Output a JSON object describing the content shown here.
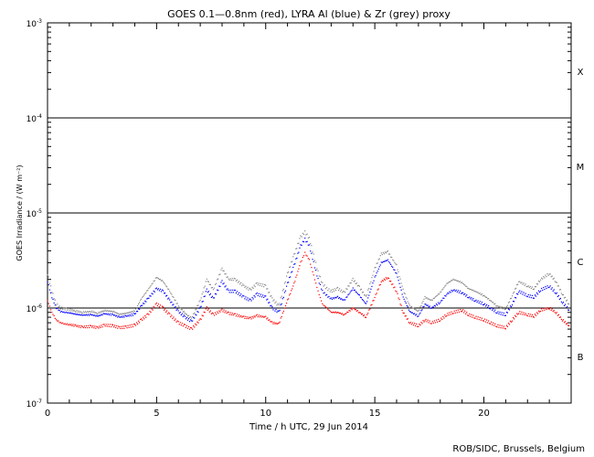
{
  "chart_data": {
    "type": "scatter",
    "title": "GOES 0.1—0.8nm (red), LYRA Al (blue) & Zr (grey) proxy",
    "xlabel": "Time / h UTC, 29 Jun 2014",
    "ylabel": "GOES Irradiance / (W m⁻²)",
    "xlim": [
      0,
      24
    ],
    "ylim": [
      1e-07,
      0.001
    ],
    "yscale": "log",
    "x_ticks": [
      {
        "value": 0,
        "label": "0"
      },
      {
        "value": 5,
        "label": "5"
      },
      {
        "value": 10,
        "label": "10"
      },
      {
        "value": 15,
        "label": "15"
      },
      {
        "value": 20,
        "label": "20"
      }
    ],
    "y_ticks": [
      {
        "value": 1e-07,
        "base": "10",
        "exp": "-7"
      },
      {
        "value": 1e-06,
        "base": "10",
        "exp": "-6"
      },
      {
        "value": 1e-05,
        "base": "10",
        "exp": "-5"
      },
      {
        "value": 0.0001,
        "base": "10",
        "exp": "-4"
      },
      {
        "value": 0.001,
        "base": "10",
        "exp": "-3"
      }
    ],
    "class_levels": [
      1e-06,
      1e-05,
      0.0001
    ],
    "class_labels": [
      {
        "label": "B",
        "value": 3.1e-07
      },
      {
        "label": "C",
        "value": 3.1e-06
      },
      {
        "label": "M",
        "value": 3.1e-05
      },
      {
        "label": "X",
        "value": 0.00031
      }
    ],
    "grid": false,
    "series": [
      {
        "color": "#ff0000",
        "x": [
          0.0,
          0.2,
          0.4,
          0.6,
          0.8,
          1.0,
          1.3,
          1.6,
          2.0,
          2.3,
          2.6,
          3.0,
          3.3,
          3.6,
          4.0,
          4.3,
          4.6,
          5.0,
          5.3,
          5.6,
          6.0,
          6.3,
          6.6,
          7.0,
          7.3,
          7.6,
          8.0,
          8.3,
          8.6,
          9.0,
          9.3,
          9.6,
          10.0,
          10.3,
          10.6,
          11.0,
          11.3,
          11.6,
          11.8,
          12.0,
          12.2,
          12.4,
          12.6,
          12.8,
          13.0,
          13.3,
          13.6,
          14.0,
          14.3,
          14.6,
          15.0,
          15.3,
          15.6,
          16.0,
          16.3,
          16.6,
          17.0,
          17.3,
          17.6,
          18.0,
          18.3,
          18.6,
          19.0,
          19.3,
          19.6,
          20.0,
          20.3,
          20.6,
          21.0,
          21.3,
          21.6,
          22.0,
          22.3,
          22.6,
          23.0,
          23.3,
          23.6,
          23.9
        ],
        "y": [
          1.2e-06,
          9e-07,
          7.5e-07,
          7e-07,
          6.8e-07,
          6.7e-07,
          6.5e-07,
          6.3e-07,
          6.4e-07,
          6.2e-07,
          6.6e-07,
          6.5e-07,
          6.2e-07,
          6.3e-07,
          6.6e-07,
          7.5e-07,
          8.5e-07,
          1.1e-06,
          1e-06,
          8.5e-07,
          7e-07,
          6.5e-07,
          6e-07,
          7.5e-07,
          1e-06,
          8.5e-07,
          9.5e-07,
          8.8e-07,
          8.5e-07,
          8e-07,
          7.8e-07,
          8.3e-07,
          8e-07,
          7e-07,
          6.8e-07,
          1.2e-06,
          1.8e-06,
          3e-06,
          3.8e-06,
          3.2e-06,
          2.2e-06,
          1.5e-06,
          1.1e-06,
          1e-06,
          9e-07,
          9e-07,
          8.5e-07,
          1e-06,
          9e-07,
          8e-07,
          1.3e-06,
          1.9e-06,
          2.1e-06,
          1.5e-06,
          9e-07,
          7e-07,
          6.5e-07,
          7.5e-07,
          7e-07,
          7.5e-07,
          8.5e-07,
          9e-07,
          9.5e-07,
          8.5e-07,
          8e-07,
          7.5e-07,
          7e-07,
          6.5e-07,
          6.2e-07,
          7.5e-07,
          9e-07,
          8.5e-07,
          8.2e-07,
          9.5e-07,
          1e-06,
          9e-07,
          7.5e-07,
          6.5e-07
        ]
      },
      {
        "color": "#0000ff",
        "x": [
          0.0,
          0.2,
          0.4,
          0.6,
          0.8,
          1.0,
          1.3,
          1.6,
          2.0,
          2.3,
          2.6,
          3.0,
          3.3,
          3.6,
          4.0,
          4.3,
          4.6,
          5.0,
          5.3,
          5.6,
          6.0,
          6.3,
          6.6,
          7.0,
          7.3,
          7.6,
          8.0,
          8.3,
          8.6,
          9.0,
          9.3,
          9.6,
          10.0,
          10.3,
          10.6,
          11.0,
          11.3,
          11.6,
          11.8,
          12.0,
          12.2,
          12.4,
          12.6,
          12.8,
          13.0,
          13.3,
          13.6,
          14.0,
          14.3,
          14.6,
          15.0,
          15.3,
          15.6,
          16.0,
          16.3,
          16.6,
          17.0,
          17.3,
          17.6,
          18.0,
          18.3,
          18.6,
          19.0,
          19.3,
          19.6,
          20.0,
          20.3,
          20.6,
          21.0,
          21.3,
          21.6,
          22.0,
          22.3,
          22.6,
          23.0,
          23.3,
          23.6,
          23.9
        ],
        "y": [
          1.9e-06,
          1.3e-06,
          1e-06,
          9.2e-07,
          9e-07,
          8.9e-07,
          8.6e-07,
          8.4e-07,
          8.5e-07,
          8.2e-07,
          8.7e-07,
          8.5e-07,
          8e-07,
          8.2e-07,
          8.6e-07,
          1.05e-06,
          1.25e-06,
          1.6e-06,
          1.5e-06,
          1.2e-06,
          9.2e-07,
          8e-07,
          7.2e-07,
          1e-06,
          1.55e-06,
          1.25e-06,
          1.9e-06,
          1.5e-06,
          1.5e-06,
          1.3e-06,
          1.2e-06,
          1.4e-06,
          1.3e-06,
          1e-06,
          9e-07,
          1.8e-06,
          2.8e-06,
          4.5e-06,
          5.3e-06,
          4.5e-06,
          3e-06,
          2e-06,
          1.5e-06,
          1.35e-06,
          1.25e-06,
          1.3e-06,
          1.2e-06,
          1.6e-06,
          1.35e-06,
          1.1e-06,
          2.1e-06,
          3e-06,
          3.2e-06,
          2.3e-06,
          1.3e-06,
          9.2e-07,
          8.2e-07,
          1.1e-06,
          1e-06,
          1.15e-06,
          1.4e-06,
          1.55e-06,
          1.45e-06,
          1.3e-06,
          1.2e-06,
          1.1e-06,
          1e-06,
          9e-07,
          8.5e-07,
          1.1e-06,
          1.5e-06,
          1.35e-06,
          1.3e-06,
          1.55e-06,
          1.7e-06,
          1.45e-06,
          1.15e-06,
          9.5e-07
        ]
      },
      {
        "color": "#888888",
        "x": [
          0.0,
          0.2,
          0.4,
          0.6,
          0.8,
          1.0,
          1.3,
          1.6,
          2.0,
          2.3,
          2.6,
          3.0,
          3.3,
          3.6,
          4.0,
          4.3,
          4.6,
          5.0,
          5.3,
          5.6,
          6.0,
          6.3,
          6.6,
          7.0,
          7.3,
          7.6,
          8.0,
          8.3,
          8.6,
          9.0,
          9.3,
          9.6,
          10.0,
          10.3,
          10.6,
          11.0,
          11.3,
          11.6,
          11.8,
          12.0,
          12.2,
          12.4,
          12.6,
          12.8,
          13.0,
          13.3,
          13.6,
          14.0,
          14.3,
          14.6,
          15.0,
          15.3,
          15.6,
          16.0,
          16.3,
          16.6,
          17.0,
          17.3,
          17.6,
          18.0,
          18.3,
          18.6,
          19.0,
          19.3,
          19.6,
          20.0,
          20.3,
          20.6,
          21.0,
          21.3,
          21.6,
          22.0,
          22.3,
          22.6,
          23.0,
          23.3,
          23.6,
          23.9
        ],
        "y": [
          2.3e-06,
          1.5e-06,
          1.1e-06,
          1e-06,
          9.8e-07,
          9.6e-07,
          9.3e-07,
          9e-07,
          9.2e-07,
          8.8e-07,
          9.4e-07,
          9.2e-07,
          8.6e-07,
          8.8e-07,
          9.3e-07,
          1.25e-06,
          1.55e-06,
          2.1e-06,
          1.9e-06,
          1.5e-06,
          1.05e-06,
          8.8e-07,
          7.8e-07,
          1.2e-06,
          2e-06,
          1.55e-06,
          2.6e-06,
          2e-06,
          2e-06,
          1.7e-06,
          1.55e-06,
          1.8e-06,
          1.7e-06,
          1.25e-06,
          1.05e-06,
          2.3e-06,
          3.6e-06,
          5.6e-06,
          6.3e-06,
          5.4e-06,
          3.6e-06,
          2.4e-06,
          1.8e-06,
          1.6e-06,
          1.5e-06,
          1.6e-06,
          1.45e-06,
          2e-06,
          1.65e-06,
          1.3e-06,
          2.6e-06,
          3.7e-06,
          3.9e-06,
          2.8e-06,
          1.55e-06,
          1.05e-06,
          9.2e-07,
          1.3e-06,
          1.2e-06,
          1.45e-06,
          1.8e-06,
          2e-06,
          1.85e-06,
          1.6e-06,
          1.5e-06,
          1.35e-06,
          1.2e-06,
          1.05e-06,
          9.8e-07,
          1.35e-06,
          1.9e-06,
          1.7e-06,
          1.6e-06,
          2e-06,
          2.3e-06,
          1.9e-06,
          1.4e-06,
          1.1e-06
        ]
      }
    ]
  },
  "footer": {
    "credit": "ROB/SIDC, Brussels, Belgium"
  }
}
